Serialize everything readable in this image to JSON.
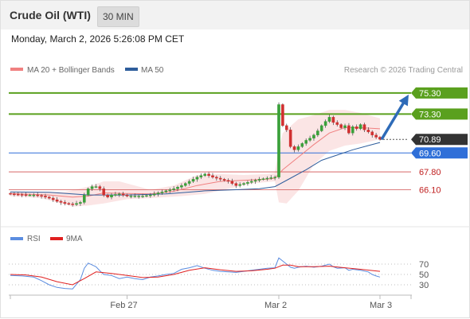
{
  "header": {
    "title": "Crude Oil (WTI)",
    "timeframe": "30 MIN"
  },
  "datetime": "Monday, March 2, 2026 5:26:08 PM CET",
  "legend": {
    "bollinger": "MA 20 + Bollinger Bands",
    "ma50": "MA 50",
    "credit": "Research © 2026 Trading Central"
  },
  "rsi_legend": {
    "rsi": "RSI",
    "ma9": "9MA"
  },
  "colors": {
    "candle_up": "#3aa03a",
    "candle_down": "#d03030",
    "ma20": "#f08080",
    "band_fill": "#f9d3d3",
    "ma50": "#2e5d9c",
    "resistance": "#5aa01e",
    "support_blue": "#2f6fd8",
    "support_red": "#d05050",
    "current": "#333333",
    "rsi": "#5b8de0",
    "rsi_ma": "#e02020",
    "arrow": "#2e6bb8"
  },
  "chart_data": [
    {
      "type": "candlestick",
      "name": "Crude Oil (WTI) 30 MIN price",
      "x_ticks": [
        "Feb 27",
        "Mar 2",
        "Mar 3"
      ],
      "ylim": [
        64.4,
        75.9
      ],
      "levels": [
        {
          "value": 75.3,
          "label": "75.30",
          "kind": "resistance"
        },
        {
          "value": 73.3,
          "label": "73.30",
          "kind": "resistance"
        },
        {
          "value": 70.89,
          "label": "70.89",
          "kind": "current"
        },
        {
          "value": 69.6,
          "label": "69.60",
          "kind": "support_blue"
        },
        {
          "value": 67.8,
          "label": "67.80",
          "kind": "support_red"
        },
        {
          "value": 66.1,
          "label": "66.10",
          "kind": "support_red"
        }
      ],
      "close_path": [
        [
          0,
          65.7
        ],
        [
          2,
          65.65
        ],
        [
          4,
          65.6
        ],
        [
          6,
          65.6
        ],
        [
          8,
          65.5
        ],
        [
          10,
          65.3
        ],
        [
          12,
          65.0
        ],
        [
          14,
          64.8
        ],
        [
          16,
          64.7
        ],
        [
          18,
          64.9
        ],
        [
          19,
          65.6
        ],
        [
          20,
          66.2
        ],
        [
          21,
          66.4
        ],
        [
          22,
          66.4
        ],
        [
          23,
          66.2
        ],
        [
          24,
          65.6
        ],
        [
          25,
          65.4
        ],
        [
          26,
          65.6
        ],
        [
          28,
          65.7
        ],
        [
          30,
          65.5
        ],
        [
          32,
          65.5
        ],
        [
          34,
          65.5
        ],
        [
          36,
          65.6
        ],
        [
          38,
          65.8
        ],
        [
          40,
          66.0
        ],
        [
          42,
          66.2
        ],
        [
          44,
          66.5
        ],
        [
          46,
          66.9
        ],
        [
          48,
          67.3
        ],
        [
          50,
          67.6
        ],
        [
          52,
          67.3
        ],
        [
          54,
          67.1
        ],
        [
          56,
          66.9
        ],
        [
          58,
          66.5
        ],
        [
          60,
          66.7
        ],
        [
          62,
          66.9
        ],
        [
          64,
          67.1
        ],
        [
          66,
          67.2
        ],
        [
          68,
          67.3
        ],
        [
          69,
          74.2
        ],
        [
          70,
          72.2
        ],
        [
          71,
          71.8
        ],
        [
          72,
          70.2
        ],
        [
          73,
          69.9
        ],
        [
          74,
          70.2
        ],
        [
          75,
          70.5
        ],
        [
          76,
          70.8
        ],
        [
          77,
          71.0
        ],
        [
          78,
          71.3
        ],
        [
          79,
          71.7
        ],
        [
          80,
          72.2
        ],
        [
          81,
          72.6
        ],
        [
          82,
          73.0
        ],
        [
          83,
          72.5
        ],
        [
          84,
          72.3
        ],
        [
          85,
          72.0
        ],
        [
          86,
          72.2
        ],
        [
          87,
          71.5
        ],
        [
          88,
          72.1
        ],
        [
          89,
          71.9
        ],
        [
          90,
          72.3
        ],
        [
          91,
          71.8
        ],
        [
          92,
          71.6
        ],
        [
          93,
          71.3
        ],
        [
          94,
          71.1
        ],
        [
          95,
          70.9
        ]
      ],
      "ma20_path": [
        [
          0,
          65.75
        ],
        [
          10,
          65.6
        ],
        [
          16,
          65.4
        ],
        [
          20,
          65.5
        ],
        [
          24,
          65.8
        ],
        [
          30,
          65.75
        ],
        [
          36,
          65.7
        ],
        [
          42,
          65.95
        ],
        [
          48,
          66.5
        ],
        [
          54,
          66.9
        ],
        [
          60,
          67.0
        ],
        [
          66,
          67.1
        ],
        [
          68,
          67.2
        ],
        [
          70,
          68.0
        ],
        [
          74,
          69.2
        ],
        [
          78,
          70.4
        ],
        [
          82,
          71.5
        ],
        [
          86,
          72.0
        ],
        [
          90,
          72.0
        ],
        [
          95,
          71.9
        ]
      ],
      "band_upper": [
        [
          0,
          65.9
        ],
        [
          8,
          65.9
        ],
        [
          14,
          65.9
        ],
        [
          20,
          66.4
        ],
        [
          24,
          66.9
        ],
        [
          28,
          66.9
        ],
        [
          32,
          66.5
        ],
        [
          36,
          66.1
        ],
        [
          42,
          66.5
        ],
        [
          48,
          67.5
        ],
        [
          54,
          67.6
        ],
        [
          60,
          67.5
        ],
        [
          66,
          67.6
        ],
        [
          68,
          67.7
        ],
        [
          69,
          70.0
        ],
        [
          70,
          71.5
        ],
        [
          74,
          72.8
        ],
        [
          78,
          73.2
        ],
        [
          82,
          73.7
        ],
        [
          86,
          73.7
        ],
        [
          90,
          73.4
        ],
        [
          95,
          72.9
        ]
      ],
      "band_lower": [
        [
          95,
          70.9
        ],
        [
          90,
          70.5
        ],
        [
          86,
          70.3
        ],
        [
          82,
          69.8
        ],
        [
          78,
          68.5
        ],
        [
          74,
          66.0
        ],
        [
          71,
          64.8
        ],
        [
          69,
          64.9
        ],
        [
          68,
          66.9
        ],
        [
          62,
          66.7
        ],
        [
          56,
          66.2
        ],
        [
          50,
          65.7
        ],
        [
          44,
          65.5
        ],
        [
          36,
          65.3
        ],
        [
          30,
          65.2
        ],
        [
          24,
          64.8
        ],
        [
          20,
          64.6
        ],
        [
          16,
          64.5
        ],
        [
          12,
          64.9
        ],
        [
          8,
          65.3
        ],
        [
          0,
          65.5
        ]
      ],
      "ma50_path": [
        [
          0,
          65.9
        ],
        [
          10,
          65.85
        ],
        [
          20,
          65.6
        ],
        [
          30,
          65.6
        ],
        [
          40,
          65.7
        ],
        [
          50,
          66.0
        ],
        [
          58,
          66.1
        ],
        [
          64,
          66.2
        ],
        [
          68,
          66.4
        ],
        [
          72,
          67.2
        ],
        [
          76,
          68.0
        ],
        [
          80,
          68.9
        ],
        [
          84,
          69.4
        ],
        [
          88,
          69.9
        ],
        [
          92,
          70.3
        ],
        [
          95,
          70.6
        ]
      ],
      "forecast_arrow": {
        "from": 70.89,
        "to": 75.3
      }
    },
    {
      "type": "line",
      "name": "RSI",
      "y_ticks": [
        70,
        50,
        30
      ],
      "ylim": [
        10,
        90
      ],
      "rsi_path": [
        [
          0,
          48
        ],
        [
          3,
          47
        ],
        [
          6,
          45
        ],
        [
          8,
          38
        ],
        [
          10,
          30
        ],
        [
          12,
          25
        ],
        [
          14,
          23
        ],
        [
          16,
          22
        ],
        [
          18,
          40
        ],
        [
          19,
          62
        ],
        [
          20,
          72
        ],
        [
          22,
          65
        ],
        [
          23,
          57
        ],
        [
          24,
          50
        ],
        [
          26,
          48
        ],
        [
          28,
          42
        ],
        [
          30,
          45
        ],
        [
          32,
          42
        ],
        [
          34,
          40
        ],
        [
          36,
          45
        ],
        [
          38,
          47
        ],
        [
          40,
          50
        ],
        [
          42,
          52
        ],
        [
          44,
          60
        ],
        [
          46,
          63
        ],
        [
          48,
          67
        ],
        [
          50,
          62
        ],
        [
          52,
          58
        ],
        [
          54,
          56
        ],
        [
          56,
          55
        ],
        [
          58,
          54
        ],
        [
          60,
          56
        ],
        [
          62,
          58
        ],
        [
          64,
          60
        ],
        [
          66,
          62
        ],
        [
          68,
          63
        ],
        [
          69,
          82
        ],
        [
          70,
          76
        ],
        [
          71,
          70
        ],
        [
          72,
          64
        ],
        [
          73,
          62
        ],
        [
          74,
          64
        ],
        [
          76,
          66
        ],
        [
          78,
          64
        ],
        [
          80,
          66
        ],
        [
          82,
          70
        ],
        [
          83,
          65
        ],
        [
          84,
          62
        ],
        [
          86,
          63
        ],
        [
          87,
          58
        ],
        [
          88,
          60
        ],
        [
          90,
          58
        ],
        [
          92,
          55
        ],
        [
          93,
          50
        ],
        [
          94,
          47
        ],
        [
          95,
          45
        ]
      ],
      "rsi_ma_path": [
        [
          0,
          50
        ],
        [
          4,
          49
        ],
        [
          8,
          45
        ],
        [
          12,
          36
        ],
        [
          16,
          30
        ],
        [
          19,
          42
        ],
        [
          22,
          55
        ],
        [
          26,
          52
        ],
        [
          30,
          48
        ],
        [
          34,
          44
        ],
        [
          38,
          45
        ],
        [
          42,
          50
        ],
        [
          46,
          58
        ],
        [
          50,
          63
        ],
        [
          54,
          59
        ],
        [
          58,
          56
        ],
        [
          62,
          57
        ],
        [
          66,
          60
        ],
        [
          68,
          62
        ],
        [
          70,
          68
        ],
        [
          72,
          68
        ],
        [
          74,
          65
        ],
        [
          78,
          65
        ],
        [
          82,
          66
        ],
        [
          86,
          63
        ],
        [
          90,
          60
        ],
        [
          95,
          56
        ]
      ]
    }
  ]
}
